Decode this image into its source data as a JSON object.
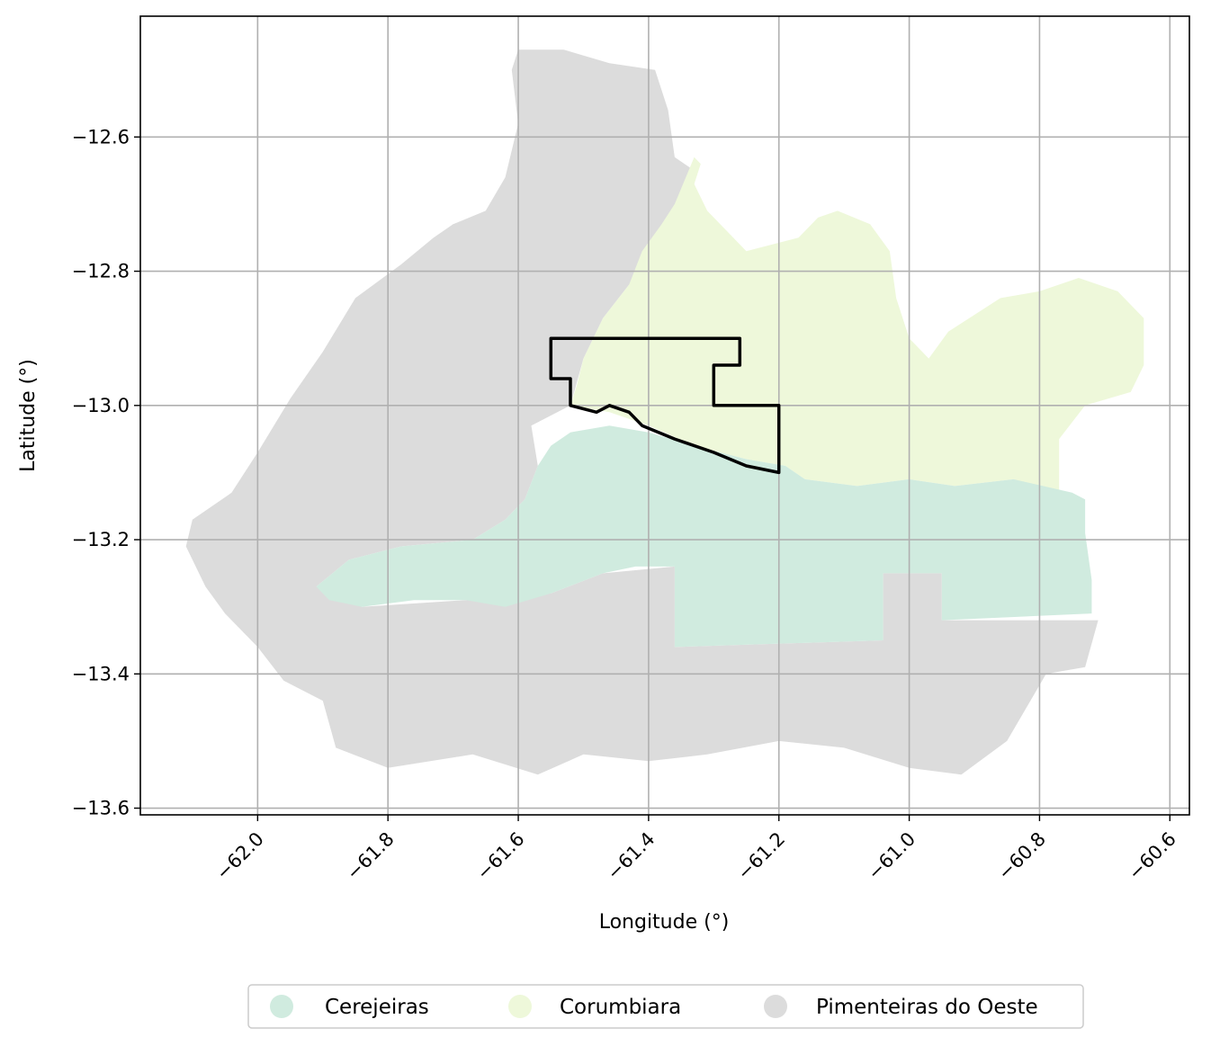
{
  "chart_data": {
    "type": "map",
    "xlabel": "Longitude (°)",
    "ylabel": "Latitude (°)",
    "xlim": [
      -62.18,
      -60.57
    ],
    "ylim": [
      -13.61,
      -12.42
    ],
    "x_ticks": [
      -62.0,
      -61.8,
      -61.6,
      -61.4,
      -61.2,
      -61.0,
      -60.8,
      -60.6
    ],
    "x_tick_labels": [
      "−62.0",
      "−61.8",
      "−61.6",
      "−61.4",
      "−61.2",
      "−61.0",
      "−60.8",
      "−60.6"
    ],
    "y_ticks": [
      -12.6,
      -12.8,
      -13.0,
      -13.2,
      -13.4,
      -13.6
    ],
    "y_tick_labels": [
      "−12.6",
      "−12.8",
      "−13.0",
      "−13.2",
      "−13.4",
      "−13.6"
    ],
    "grid": true,
    "legend_position": "bottom-center",
    "regions": [
      {
        "name": "Cerejeiras",
        "color": "#d0ebdf",
        "outline": [
          [
            -61.52,
            -13.04
          ],
          [
            -61.46,
            -13.03
          ],
          [
            -61.4,
            -13.04
          ],
          [
            -61.33,
            -13.06
          ],
          [
            -61.25,
            -13.08
          ],
          [
            -61.19,
            -13.09
          ],
          [
            -61.16,
            -13.11
          ],
          [
            -61.08,
            -13.12
          ],
          [
            -61.0,
            -13.11
          ],
          [
            -60.93,
            -13.12
          ],
          [
            -60.84,
            -13.11
          ],
          [
            -60.75,
            -13.13
          ],
          [
            -60.73,
            -13.14
          ],
          [
            -60.73,
            -13.19
          ],
          [
            -60.72,
            -13.26
          ],
          [
            -60.72,
            -13.31
          ],
          [
            -60.95,
            -13.32
          ],
          [
            -60.95,
            -13.25
          ],
          [
            -61.04,
            -13.25
          ],
          [
            -61.04,
            -13.35
          ],
          [
            -61.36,
            -13.36
          ],
          [
            -61.36,
            -13.24
          ],
          [
            -61.42,
            -13.24
          ],
          [
            -61.47,
            -13.25
          ],
          [
            -61.55,
            -13.28
          ],
          [
            -61.62,
            -13.3
          ],
          [
            -61.68,
            -13.29
          ],
          [
            -61.76,
            -13.29
          ],
          [
            -61.84,
            -13.3
          ],
          [
            -61.89,
            -13.29
          ],
          [
            -61.91,
            -13.27
          ],
          [
            -61.86,
            -13.23
          ],
          [
            -61.78,
            -13.21
          ],
          [
            -61.67,
            -13.2
          ],
          [
            -61.62,
            -13.17
          ],
          [
            -61.59,
            -13.14
          ],
          [
            -61.57,
            -13.09
          ],
          [
            -61.55,
            -13.06
          ]
        ]
      },
      {
        "name": "Corumbiara",
        "color": "#eef8da",
        "outline": [
          [
            -61.33,
            -12.63
          ],
          [
            -61.36,
            -12.7
          ],
          [
            -61.38,
            -12.73
          ],
          [
            -61.41,
            -12.77
          ],
          [
            -61.43,
            -12.82
          ],
          [
            -61.47,
            -12.87
          ],
          [
            -61.5,
            -12.93
          ],
          [
            -61.51,
            -12.97
          ],
          [
            -61.52,
            -13.0
          ],
          [
            -61.46,
            -13.01
          ],
          [
            -61.4,
            -13.03
          ],
          [
            -61.33,
            -13.06
          ],
          [
            -61.25,
            -13.08
          ],
          [
            -61.19,
            -13.09
          ],
          [
            -61.16,
            -13.11
          ],
          [
            -61.08,
            -13.12
          ],
          [
            -61.0,
            -13.11
          ],
          [
            -60.93,
            -13.12
          ],
          [
            -60.84,
            -13.11
          ],
          [
            -60.77,
            -13.13
          ],
          [
            -60.77,
            -13.05
          ],
          [
            -60.73,
            -13.0
          ],
          [
            -60.66,
            -12.98
          ],
          [
            -60.64,
            -12.94
          ],
          [
            -60.64,
            -12.87
          ],
          [
            -60.68,
            -12.83
          ],
          [
            -60.74,
            -12.81
          ],
          [
            -60.8,
            -12.83
          ],
          [
            -60.86,
            -12.84
          ],
          [
            -60.94,
            -12.89
          ],
          [
            -60.97,
            -12.93
          ],
          [
            -61.0,
            -12.9
          ],
          [
            -61.02,
            -12.84
          ],
          [
            -61.03,
            -12.77
          ],
          [
            -61.06,
            -12.73
          ],
          [
            -61.11,
            -12.71
          ],
          [
            -61.14,
            -12.72
          ],
          [
            -61.17,
            -12.75
          ],
          [
            -61.21,
            -12.76
          ],
          [
            -61.25,
            -12.77
          ],
          [
            -61.28,
            -12.74
          ],
          [
            -61.31,
            -12.71
          ],
          [
            -61.33,
            -12.67
          ],
          [
            -61.32,
            -12.64
          ]
        ]
      },
      {
        "name": "Pimenteiras do Oeste",
        "color": "#dcdcdc",
        "outline": [
          [
            -61.6,
            -12.47
          ],
          [
            -61.53,
            -12.47
          ],
          [
            -61.46,
            -12.49
          ],
          [
            -61.39,
            -12.5
          ],
          [
            -61.37,
            -12.56
          ],
          [
            -61.36,
            -12.63
          ],
          [
            -61.33,
            -12.65
          ],
          [
            -61.33,
            -12.69
          ],
          [
            -61.35,
            -12.76
          ],
          [
            -61.37,
            -12.8
          ],
          [
            -61.43,
            -12.82
          ],
          [
            -61.47,
            -12.87
          ],
          [
            -61.5,
            -12.93
          ],
          [
            -61.52,
            -13.0
          ],
          [
            -61.58,
            -13.03
          ],
          [
            -61.57,
            -13.09
          ],
          [
            -61.59,
            -13.14
          ],
          [
            -61.62,
            -13.17
          ],
          [
            -61.67,
            -13.2
          ],
          [
            -61.78,
            -13.21
          ],
          [
            -61.86,
            -13.23
          ],
          [
            -61.91,
            -13.27
          ],
          [
            -61.84,
            -13.3
          ],
          [
            -61.68,
            -13.29
          ],
          [
            -61.55,
            -13.28
          ],
          [
            -61.47,
            -13.25
          ],
          [
            -61.36,
            -13.24
          ],
          [
            -61.36,
            -13.36
          ],
          [
            -61.04,
            -13.35
          ],
          [
            -61.04,
            -13.25
          ],
          [
            -60.95,
            -13.25
          ],
          [
            -60.95,
            -13.32
          ],
          [
            -60.71,
            -13.32
          ],
          [
            -60.73,
            -13.39
          ],
          [
            -60.79,
            -13.4
          ],
          [
            -60.85,
            -13.5
          ],
          [
            -60.92,
            -13.55
          ],
          [
            -61.0,
            -13.54
          ],
          [
            -61.1,
            -13.51
          ],
          [
            -61.2,
            -13.5
          ],
          [
            -61.31,
            -13.52
          ],
          [
            -61.4,
            -13.53
          ],
          [
            -61.5,
            -13.52
          ],
          [
            -61.57,
            -13.55
          ],
          [
            -61.67,
            -13.52
          ],
          [
            -61.8,
            -13.54
          ],
          [
            -61.88,
            -13.51
          ],
          [
            -61.9,
            -13.44
          ],
          [
            -61.96,
            -13.41
          ],
          [
            -62.0,
            -13.36
          ],
          [
            -62.05,
            -13.31
          ],
          [
            -62.08,
            -13.27
          ],
          [
            -62.11,
            -13.21
          ],
          [
            -62.1,
            -13.17
          ],
          [
            -62.04,
            -13.13
          ],
          [
            -62.0,
            -13.07
          ],
          [
            -61.95,
            -12.99
          ],
          [
            -61.9,
            -12.92
          ],
          [
            -61.85,
            -12.84
          ],
          [
            -61.78,
            -12.79
          ],
          [
            -61.73,
            -12.75
          ],
          [
            -61.7,
            -12.73
          ],
          [
            -61.65,
            -12.71
          ],
          [
            -61.62,
            -12.66
          ],
          [
            -61.6,
            -12.58
          ],
          [
            -61.61,
            -12.5
          ]
        ]
      }
    ],
    "highlight_boundary": {
      "color": "#000000",
      "outline": [
        [
          -61.55,
          -12.9
        ],
        [
          -61.26,
          -12.9
        ],
        [
          -61.26,
          -12.94
        ],
        [
          -61.3,
          -12.94
        ],
        [
          -61.3,
          -13.0
        ],
        [
          -61.2,
          -13.0
        ],
        [
          -61.2,
          -13.1
        ],
        [
          -61.25,
          -13.09
        ],
        [
          -61.3,
          -13.07
        ],
        [
          -61.36,
          -13.05
        ],
        [
          -61.41,
          -13.03
        ],
        [
          -61.43,
          -13.01
        ],
        [
          -61.46,
          -13.0
        ],
        [
          -61.48,
          -13.01
        ],
        [
          -61.52,
          -13.0
        ],
        [
          -61.52,
          -12.96
        ],
        [
          -61.55,
          -12.96
        ]
      ]
    }
  },
  "legend": {
    "items": [
      {
        "label": "Cerejeiras",
        "color": "#d0ebdf"
      },
      {
        "label": "Corumbiara",
        "color": "#eef8da"
      },
      {
        "label": "Pimenteiras do Oeste",
        "color": "#dcdcdc"
      }
    ]
  }
}
